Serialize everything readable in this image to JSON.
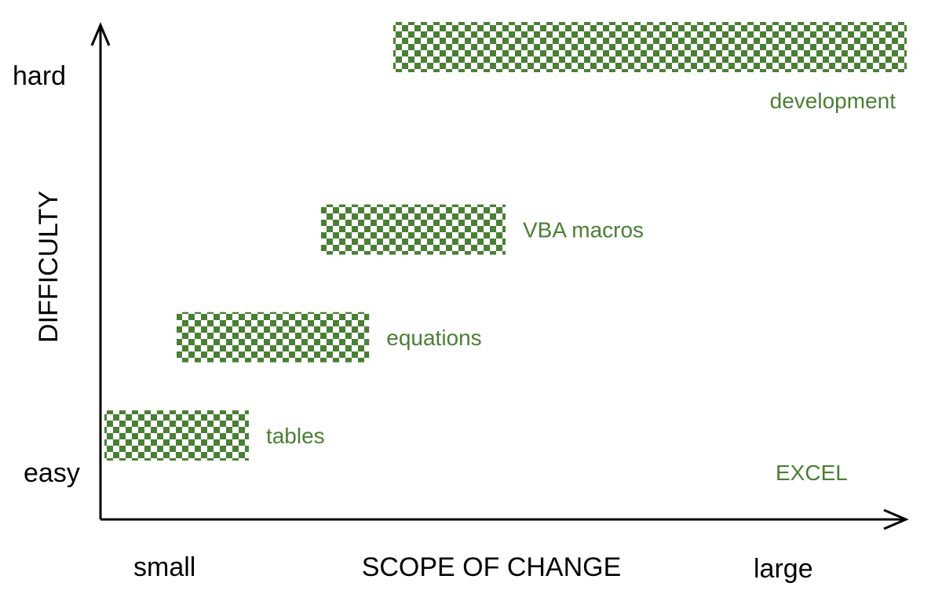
{
  "colors": {
    "accent": "#4a7f35",
    "axis": "#000000",
    "background": "#ffffff"
  },
  "y_axis": {
    "title": "DIFFICULTY",
    "top_label": "hard",
    "bottom_label": "easy"
  },
  "x_axis": {
    "title": "SCOPE OF CHANGE",
    "left_label": "small",
    "right_label": "large"
  },
  "corner_label": "EXCEL",
  "items": [
    {
      "label": "tables",
      "scope": [
        0.0,
        0.18
      ],
      "difficulty": 0.11
    },
    {
      "label": "equations",
      "scope": [
        0.09,
        0.33
      ],
      "difficulty": 0.32
    },
    {
      "label": "VBA macros",
      "scope": [
        0.27,
        0.5
      ],
      "difficulty": 0.55
    },
    {
      "label": "development",
      "scope": [
        0.36,
        1.0
      ],
      "difficulty": 0.94
    }
  ]
}
